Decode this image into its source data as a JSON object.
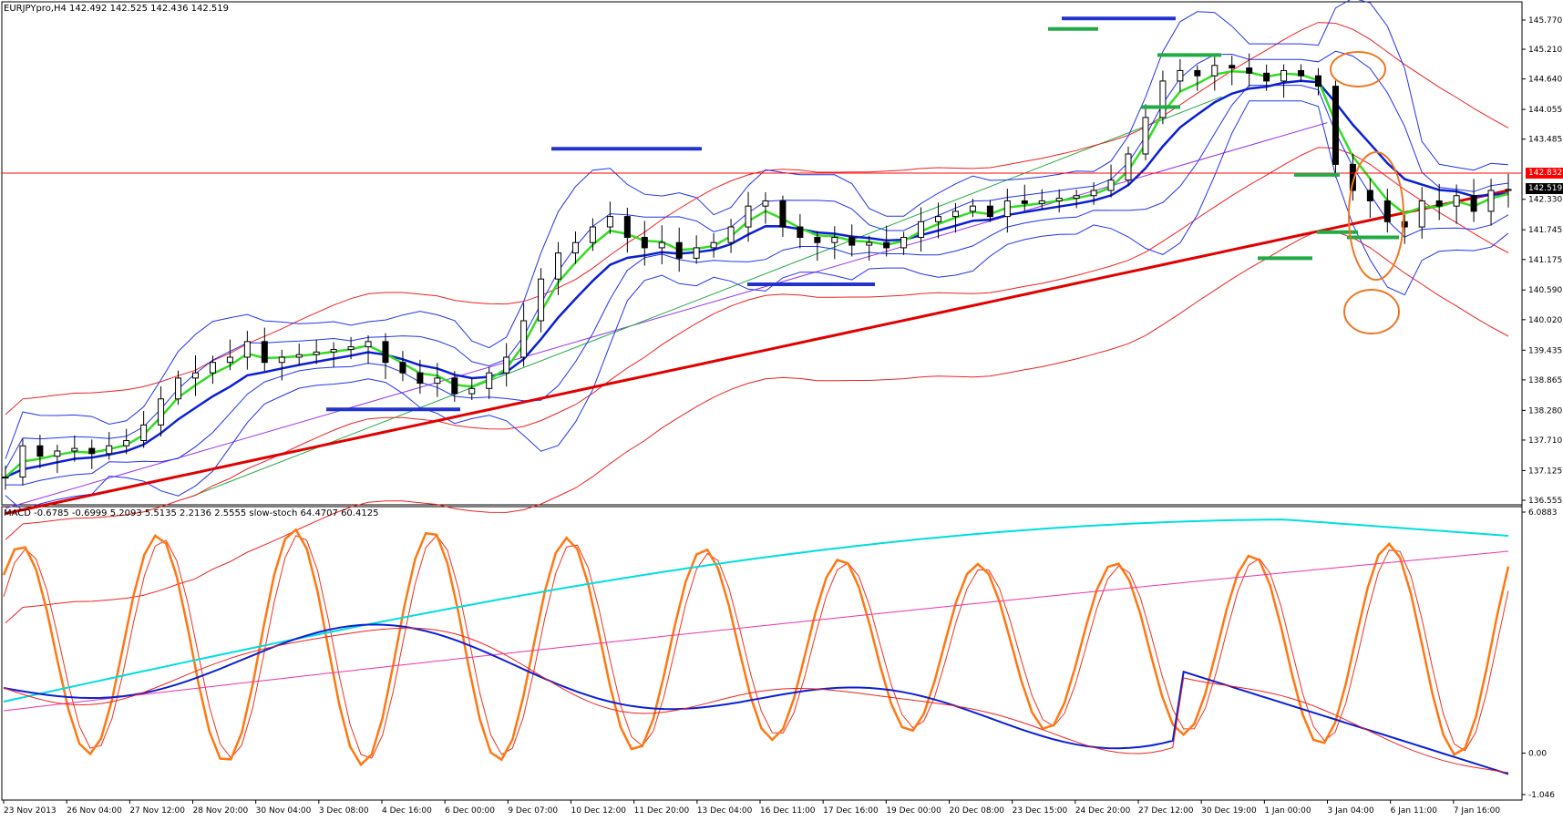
{
  "window": {
    "symbol_info": "EURJPYpro,H4  142.492 142.525 142.436 142.519",
    "indicator_info": "MACD -0.6785 -0.6999 5.2093 5.5135 2.2136 2.5555  slow-stoch 64.4707 60.4125"
  },
  "price_axis": {
    "labels": [
      "145.770",
      "145.210",
      "144.640",
      "144.055",
      "143.485",
      "142.330",
      "141.745",
      "141.175",
      "140.590",
      "140.020",
      "139.435",
      "138.865",
      "138.280",
      "137.710",
      "137.125",
      "136.555"
    ],
    "horizontal_line_label": "142.832",
    "current_price_label": "142.519"
  },
  "indicator_axis": {
    "labels": [
      "6.0883",
      "0.00",
      "-1.046"
    ]
  },
  "time_axis": {
    "labels": [
      "23 Nov 2013",
      "26 Nov 04:00",
      "27 Nov 12:00",
      "28 Nov 20:00",
      "30 Nov 04:00",
      "3 Dec 08:00",
      "4 Dec 16:00",
      "6 Dec 00:00",
      "9 Dec 07:00",
      "10 Dec 12:00",
      "11 Dec 20:00",
      "13 Dec 04:00",
      "16 Dec 11:00",
      "17 Dec 16:00",
      "19 Dec 00:00",
      "20 Dec 08:00",
      "23 Dec 15:00",
      "24 Dec 20:00",
      "27 Dec 12:00",
      "30 Dec 19:00",
      "1 Jan 00:00",
      "3 Jan 04:00",
      "6 Jan 11:00",
      "7 Jan 16:00"
    ]
  },
  "colors": {
    "bull_candle": "#ffffff",
    "bear_candle": "#000000",
    "ema_fast": "#33dd22",
    "ema_slow": "#0a1fd4",
    "ma_long": "#e00000",
    "bands": "#2233ee",
    "envelope": "#ee2222",
    "trend_purple": "#9933ee",
    "trend_green": "#22aa44",
    "hline": "#ff0000",
    "stoch": "#ff7711",
    "macd_signal": "#00dddd",
    "annotation": "#ee7722",
    "support_marker": "#2233cc",
    "green_marker": "#22aa44"
  },
  "chart_data": {
    "type": "candlestick",
    "symbol": "EURJPYpro",
    "timeframe": "H4",
    "last_bar": {
      "open": 142.492,
      "high": 142.525,
      "low": 142.436,
      "close": 142.519
    },
    "y_range": [
      136.555,
      145.77
    ],
    "horizontal_line": 142.832,
    "close_path": [
      137.0,
      137.6,
      137.4,
      137.5,
      137.55,
      137.45,
      137.6,
      137.7,
      138.0,
      138.5,
      138.9,
      139.0,
      139.2,
      139.3,
      139.6,
      139.2,
      139.3,
      139.35,
      139.4,
      139.45,
      139.5,
      139.6,
      139.2,
      139.0,
      138.8,
      138.9,
      138.6,
      138.7,
      139.0,
      139.3,
      140.0,
      140.8,
      141.3,
      141.5,
      141.8,
      142.0,
      141.6,
      141.4,
      141.5,
      141.2,
      141.4,
      141.5,
      141.8,
      142.2,
      142.3,
      141.8,
      141.6,
      141.5,
      141.6,
      141.45,
      141.5,
      141.4,
      141.6,
      141.9,
      142.0,
      142.1,
      142.2,
      142.0,
      142.3,
      142.25,
      142.3,
      142.35,
      142.4,
      142.5,
      142.7,
      143.2,
      143.9,
      144.6,
      144.8,
      144.7,
      144.9,
      144.85,
      144.75,
      144.6,
      144.8,
      144.7,
      144.5,
      143.0,
      142.5,
      142.3,
      141.9,
      141.8,
      142.3,
      142.2,
      142.4,
      142.1,
      142.5,
      142.52
    ],
    "indicators": {
      "macd": {
        "values": [
          -0.6785,
          -0.6999
        ],
        "params": [
          5.2093,
          5.5135,
          2.2136,
          2.5555
        ]
      },
      "slow_stoch": [
        64.4707,
        60.4125
      ],
      "indicator_range": [
        -1.046,
        6.0883
      ]
    }
  }
}
